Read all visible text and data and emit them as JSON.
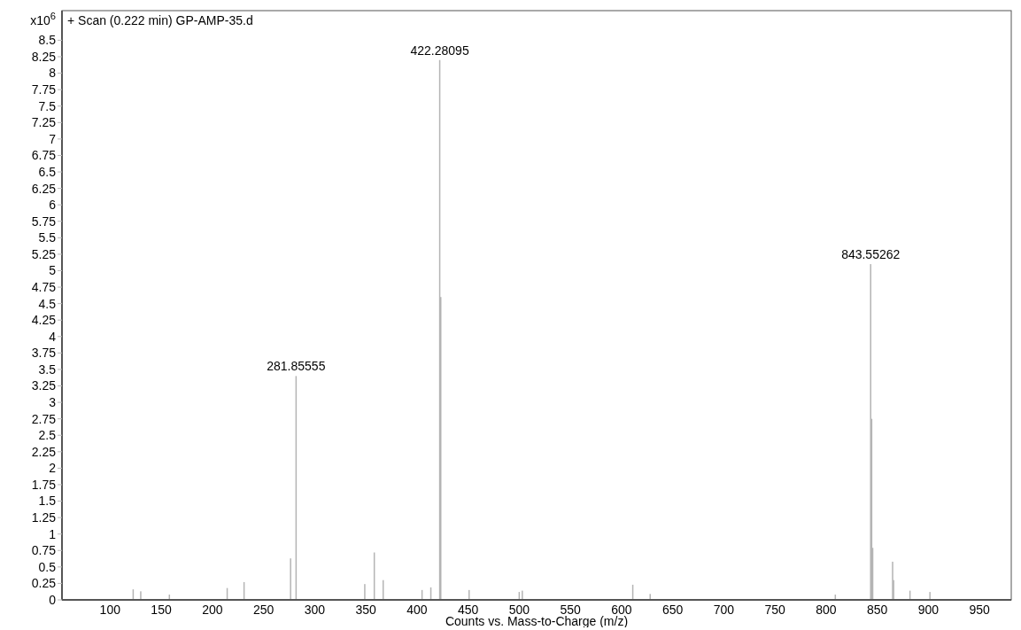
{
  "chart_data": {
    "type": "bar",
    "title": "+ Scan (0.222 min) GP-AMP-35.d",
    "xlabel": "Counts vs. Mass-to-Charge (m/z)",
    "ylabel": "x10$^{6}$",
    "x": [
      122.6,
      130,
      158,
      214.5,
      231,
      276.5,
      281.85555,
      349,
      358.3,
      367,
      405,
      413.6,
      422.28095,
      423.28,
      451,
      500,
      503,
      611,
      628,
      809,
      843.55262,
      844.55,
      845.55,
      865,
      866,
      882,
      901.5
    ],
    "values": [
      0.16,
      0.13,
      0.08,
      0.18,
      0.27,
      0.63,
      3.4,
      0.24,
      0.72,
      0.3,
      0.15,
      0.19,
      8.2,
      4.6,
      0.15,
      0.12,
      0.14,
      0.23,
      0.09,
      0.08,
      5.1,
      2.75,
      0.79,
      0.58,
      0.3,
      0.14,
      0.12
    ],
    "color": "#b4b4b4",
    "xlim": [
      53,
      981
    ],
    "xticks": [
      100,
      150,
      200,
      250,
      300,
      350,
      400,
      450,
      500,
      550,
      600,
      650,
      700,
      750,
      800,
      850,
      900,
      950
    ],
    "ylim": [
      0,
      8.95
    ],
    "yticks": [
      0,
      0.25,
      0.5,
      0.75,
      1,
      1.25,
      1.5,
      1.75,
      2,
      2.25,
      2.5,
      2.75,
      3,
      3.25,
      3.5,
      3.75,
      4,
      4.25,
      4.5,
      4.75,
      5,
      5.25,
      5.5,
      5.75,
      6,
      6.25,
      6.5,
      6.75,
      7,
      7.25,
      7.5,
      7.75,
      8,
      8.25,
      8.5
    ],
    "annotations": [
      {
        "text": "281.85555",
        "x": 281.85555,
        "y": 3.4
      },
      {
        "text": "422.28095",
        "x": 422.28095,
        "y": 8.2
      },
      {
        "text": "843.55262",
        "x": 843.55262,
        "y": 5.1
      }
    ]
  }
}
